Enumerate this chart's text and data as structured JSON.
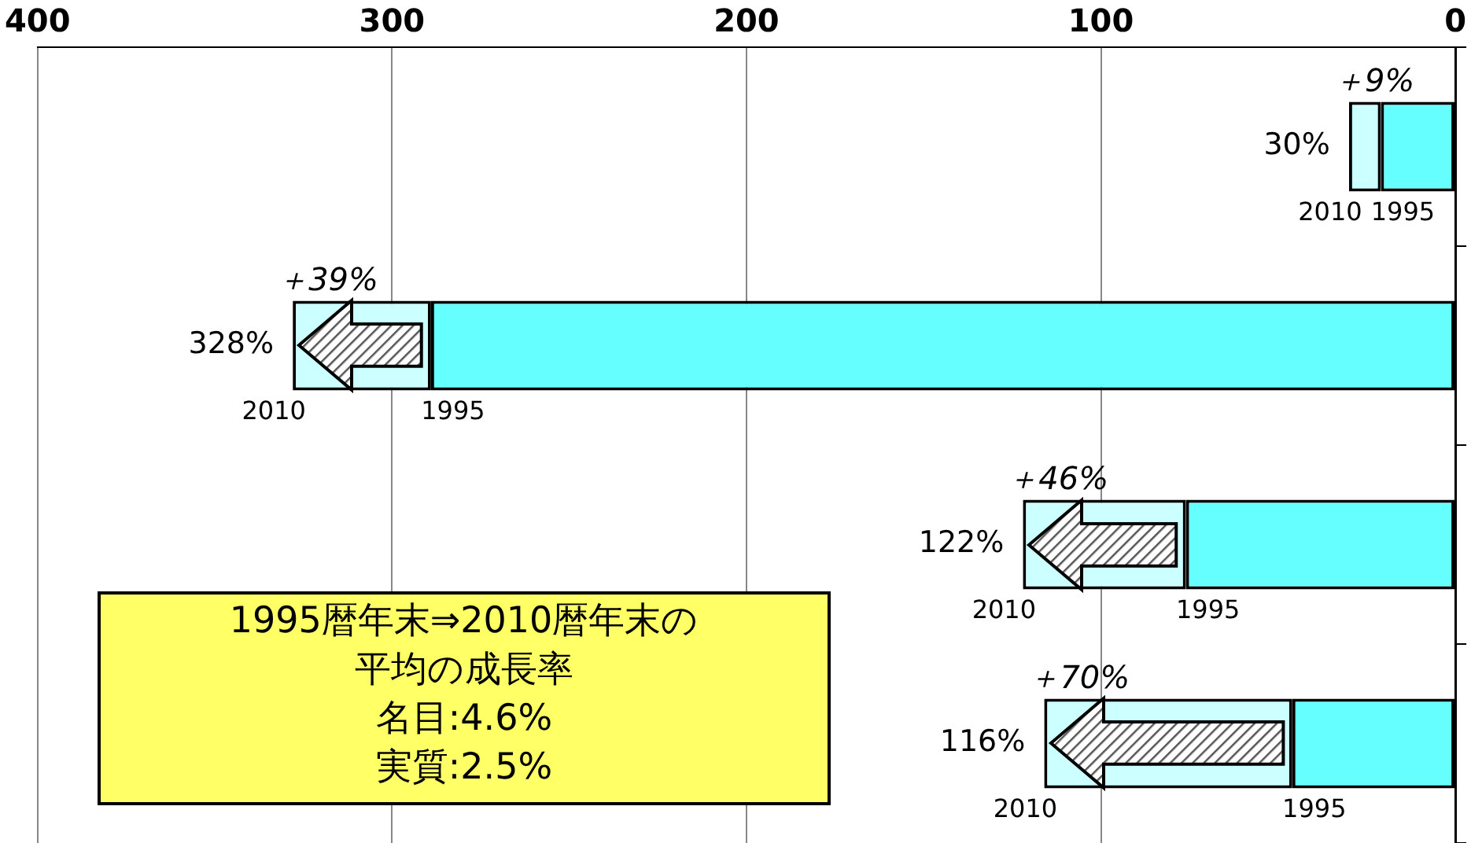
{
  "chart_data": {
    "type": "bar",
    "orientation": "horizontal",
    "stacked": true,
    "categories": [
      null,
      null,
      null,
      null
    ],
    "series": [
      {
        "name": "1995",
        "color": "#66ffff",
        "values": [
          21,
          289,
          76,
          46
        ]
      },
      {
        "name": "2010",
        "color": "#ccffff",
        "values": [
          9,
          39,
          46,
          70
        ],
        "value_labels": [
          "＋9%",
          "＋39%",
          "＋46%",
          "＋70%"
        ]
      }
    ],
    "totals": [
      "30%",
      "328%",
      "122%",
      "116%"
    ],
    "xlim": [
      400,
      0
    ],
    "xticks": [
      400,
      300,
      200,
      100,
      0
    ],
    "grid": "x",
    "legend": false,
    "annotations": [
      "1995暦年末⇒2010暦年末の平均の成長率",
      "名目:4.6%",
      "実質:2.5%"
    ]
  }
}
